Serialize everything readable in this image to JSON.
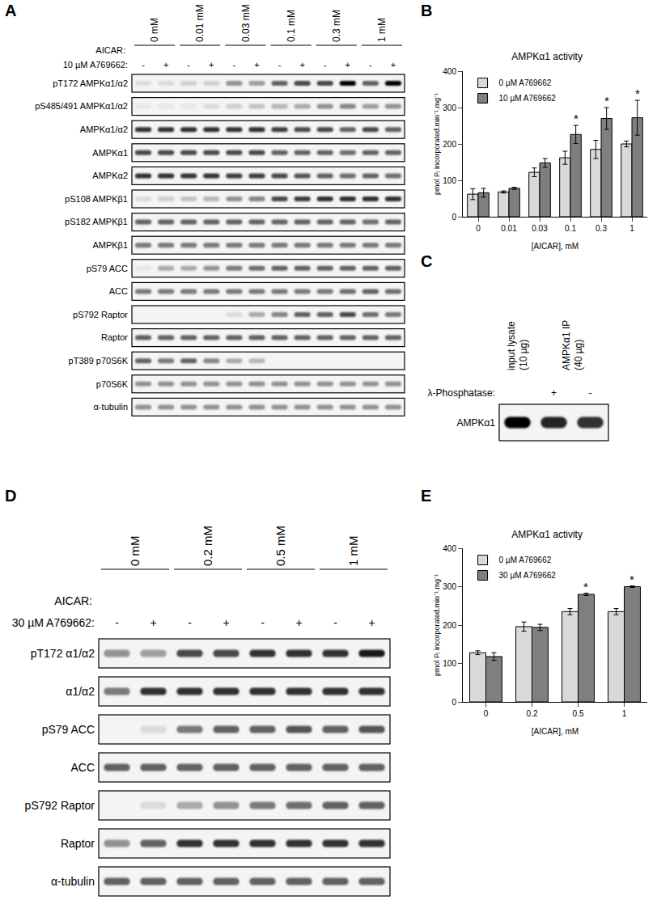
{
  "chart_panels": [
    "B",
    "E"
  ],
  "chart_data": [
    {
      "type": "bar",
      "title": "AMPKα1 activity",
      "x_label": "[AICAR], mM",
      "y_label": "pmol Pᵢ incorporated.min⁻¹.mg⁻¹",
      "categories": [
        "0",
        "0.01",
        "0.03",
        "0.1",
        "0.3",
        "1"
      ],
      "series": [
        {
          "name": "0 µM A769662",
          "color": "#d9d9d9",
          "values": [
            62,
            68,
            122,
            162,
            185,
            200
          ],
          "errors": [
            15,
            3,
            12,
            18,
            25,
            8
          ]
        },
        {
          "name": "10 µM A769662",
          "color": "#7f7f7f",
          "values": [
            66,
            78,
            148,
            226,
            270,
            272
          ],
          "errors": [
            12,
            3,
            12,
            25,
            30,
            48
          ]
        }
      ],
      "ylim": [
        0,
        400
      ],
      "yticks": [
        0,
        100,
        200,
        300,
        400
      ],
      "grid": false,
      "legend": "top-left",
      "annotations": [
        {
          "category": "0.1",
          "series": "10 µM A769662",
          "text": "*"
        },
        {
          "category": "0.3",
          "series": "10 µM A769662",
          "text": "*"
        },
        {
          "category": "1",
          "series": "10 µM A769662",
          "text": "*"
        }
      ]
    },
    {
      "type": "bar",
      "title": "AMPKα1 activity",
      "x_label": "[AICAR], mM",
      "y_label": "pmol Pᵢ incorporated.min⁻¹.mg⁻¹",
      "categories": [
        "0",
        "0.2",
        "0.5",
        "1"
      ],
      "series": [
        {
          "name": "0 µM A769662",
          "color": "#d9d9d9",
          "values": [
            128,
            196,
            235,
            235
          ],
          "errors": [
            5,
            12,
            8,
            8
          ]
        },
        {
          "name": "30 µM A769662",
          "color": "#7f7f7f",
          "values": [
            118,
            194,
            280,
            300
          ],
          "errors": [
            10,
            8,
            3,
            2
          ]
        }
      ],
      "ylim": [
        0,
        400
      ],
      "yticks": [
        0,
        100,
        200,
        300,
        400
      ],
      "grid": false,
      "legend": "top-left",
      "annotations": [
        {
          "category": "0.5",
          "series": "30 µM A769662",
          "text": "*"
        },
        {
          "category": "1",
          "series": "30 µM A769662",
          "text": "*"
        }
      ]
    }
  ],
  "blots": [
    {
      "panel": "A",
      "group_label": "AICAR:",
      "groups": [
        {
          "lines": [
            "0 mM"
          ],
          "lanes": 2
        },
        {
          "lines": [
            "0.01 mM"
          ],
          "lanes": 2
        },
        {
          "lines": [
            "0.03 mM"
          ],
          "lanes": 2
        },
        {
          "lines": [
            "0.1 mM"
          ],
          "lanes": 2
        },
        {
          "lines": [
            "0.3 mM"
          ],
          "lanes": 2
        },
        {
          "lines": [
            "1 mM"
          ],
          "lanes": 2
        }
      ],
      "treatment_label": "10 µM A769662:",
      "signs": [
        "-",
        "+",
        "-",
        "+",
        "-",
        "+",
        "-",
        "+",
        "-",
        "+",
        "-",
        "+"
      ],
      "rows": [
        {
          "label": "pT172 AMPKα1/α2",
          "bands": [
            0.1,
            0.1,
            0.15,
            0.15,
            0.4,
            0.35,
            0.6,
            0.7,
            0.7,
            1,
            0.6,
            1
          ]
        },
        {
          "label": "pS485/491 AMPKα1/α2",
          "bands": [
            0.05,
            0.05,
            0.05,
            0.1,
            0.15,
            0.2,
            0.25,
            0.3,
            0.4,
            0.45,
            0.35,
            0.4
          ]
        },
        {
          "label": "AMPKα1/α2",
          "bands": [
            0.8,
            0.8,
            0.8,
            0.8,
            0.8,
            0.8,
            0.75,
            0.7,
            0.7,
            0.6,
            0.7,
            0.6
          ]
        },
        {
          "label": "AMPKα1",
          "bands": [
            0.7,
            0.7,
            0.7,
            0.7,
            0.7,
            0.7,
            0.6,
            0.6,
            0.6,
            0.55,
            0.6,
            0.6
          ]
        },
        {
          "label": "AMPKα2",
          "bands": [
            0.8,
            0.8,
            0.8,
            0.8,
            0.75,
            0.75,
            0.7,
            0.65,
            0.6,
            0.55,
            0.6,
            0.55
          ]
        },
        {
          "label": "pS108 AMPKβ1",
          "bands": [
            0.1,
            0.15,
            0.2,
            0.25,
            0.4,
            0.45,
            0.7,
            0.75,
            0.8,
            0.8,
            0.8,
            0.8
          ]
        },
        {
          "label": "pS182 AMPKβ1",
          "bands": [
            0.6,
            0.6,
            0.6,
            0.6,
            0.6,
            0.6,
            0.6,
            0.6,
            0.6,
            0.6,
            0.55,
            0.6
          ]
        },
        {
          "label": "AMPKβ1",
          "bands": [
            0.5,
            0.5,
            0.5,
            0.5,
            0.5,
            0.5,
            0.5,
            0.5,
            0.5,
            0.5,
            0.5,
            0.5
          ]
        },
        {
          "label": "pS79 ACC",
          "bands": [
            0.05,
            0.3,
            0.3,
            0.4,
            0.5,
            0.55,
            0.6,
            0.6,
            0.6,
            0.6,
            0.6,
            0.6
          ]
        },
        {
          "label": "ACC",
          "bands": [
            0.5,
            0.5,
            0.5,
            0.5,
            0.5,
            0.5,
            0.5,
            0.5,
            0.5,
            0.55,
            0.6,
            0.55
          ]
        },
        {
          "label": "pS792 Raptor",
          "bands": [
            0,
            0,
            0,
            0,
            0.1,
            0.3,
            0.45,
            0.6,
            0.6,
            0.7,
            0.55,
            0.5
          ]
        },
        {
          "label": "Raptor",
          "bands": [
            0.6,
            0.6,
            0.6,
            0.6,
            0.6,
            0.6,
            0.6,
            0.6,
            0.6,
            0.6,
            0.6,
            0.6
          ]
        },
        {
          "label": "pT389 p70S6K",
          "bands": [
            0.6,
            0.5,
            0.6,
            0.45,
            0.3,
            0.25,
            0,
            0,
            0,
            0,
            0,
            0
          ]
        },
        {
          "label": "p70S6K",
          "bands": [
            0.4,
            0.4,
            0.4,
            0.4,
            0.4,
            0.4,
            0.4,
            0.4,
            0.4,
            0.4,
            0.4,
            0.4
          ]
        },
        {
          "label": "α-tubulin",
          "bands": [
            0.4,
            0.4,
            0.4,
            0.4,
            0.4,
            0.4,
            0.4,
            0.4,
            0.4,
            0.4,
            0.4,
            0.4
          ]
        }
      ]
    },
    {
      "panel": "C",
      "groups": [
        {
          "lines": [
            "input lysate",
            "(10 µg)"
          ],
          "lanes": 1
        },
        {
          "lines": [
            "AMPKα1 IP",
            "(40 µg)"
          ],
          "lanes": 2
        }
      ],
      "treatment_label": "λ-Phosphatase:",
      "signs": [
        "",
        "+",
        "-"
      ],
      "rows": [
        {
          "label": "AMPKα1",
          "bands": [
            1,
            0.85,
            0.8
          ]
        }
      ]
    },
    {
      "panel": "D",
      "group_label": "AICAR:",
      "groups": [
        {
          "lines": [
            "0 mM"
          ],
          "lanes": 2
        },
        {
          "lines": [
            "0.2 mM"
          ],
          "lanes": 2
        },
        {
          "lines": [
            "0.5 mM"
          ],
          "lanes": 2
        },
        {
          "lines": [
            "1 mM"
          ],
          "lanes": 2
        }
      ],
      "treatment_label": "30 µM A769662:",
      "signs": [
        "-",
        "+",
        "-",
        "+",
        "-",
        "+",
        "-",
        "+"
      ],
      "rows": [
        {
          "label": "pT172 α1/α2",
          "bands": [
            0.4,
            0.35,
            0.7,
            0.7,
            0.8,
            0.8,
            0.8,
            0.9
          ]
        },
        {
          "label": "α1/α2",
          "bands": [
            0.5,
            0.8,
            0.8,
            0.8,
            0.8,
            0.8,
            0.8,
            0.8
          ]
        },
        {
          "label": "pS79 ACC",
          "bands": [
            0,
            0.1,
            0.5,
            0.6,
            0.6,
            0.65,
            0.6,
            0.65
          ]
        },
        {
          "label": "ACC",
          "bands": [
            0.6,
            0.6,
            0.6,
            0.6,
            0.6,
            0.6,
            0.6,
            0.6
          ]
        },
        {
          "label": "pS792 Raptor",
          "bands": [
            0,
            0.1,
            0.3,
            0.4,
            0.5,
            0.55,
            0.6,
            0.6
          ]
        },
        {
          "label": "Raptor",
          "bands": [
            0.4,
            0.6,
            0.8,
            0.8,
            0.8,
            0.8,
            0.8,
            0.8
          ]
        },
        {
          "label": "α-tubulin",
          "bands": [
            0.6,
            0.6,
            0.6,
            0.6,
            0.6,
            0.6,
            0.6,
            0.6
          ]
        }
      ]
    }
  ]
}
